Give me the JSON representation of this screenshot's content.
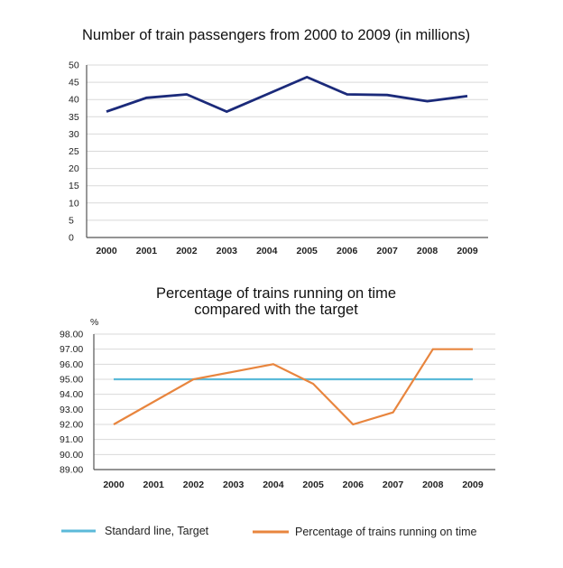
{
  "chart_data": [
    {
      "type": "line",
      "title": "Number of train passengers from 2000 to 2009 (in millions)",
      "xlabel": "",
      "ylabel": "",
      "categories": [
        "2000",
        "2001",
        "2002",
        "2003",
        "2004",
        "2005",
        "2006",
        "2007",
        "2008",
        "2009"
      ],
      "ylim": [
        0,
        50
      ],
      "yticks": [
        "0",
        "5",
        "10",
        "15",
        "20",
        "25",
        "30",
        "35",
        "40",
        "45",
        "50"
      ],
      "grid": true,
      "series": [
        {
          "name": "Train passengers (millions)",
          "color": "#1b2a7a",
          "values": [
            36.5,
            40.5,
            41.5,
            36.5,
            41.5,
            46.5,
            41.5,
            41.3,
            39.5,
            41
          ]
        }
      ]
    },
    {
      "type": "line",
      "title": [
        "Percentage of trains running on time",
        "compared with the target"
      ],
      "xlabel": "",
      "ylabel": "%",
      "categories": [
        "2000",
        "2001",
        "2002",
        "2003",
        "2004",
        "2005",
        "2006",
        "2007",
        "2008",
        "2009"
      ],
      "ylim": [
        89,
        98
      ],
      "yticks": [
        "89.00",
        "90.00",
        "91.00",
        "92.00",
        "93.00",
        "94.00",
        "95.00",
        "96.00",
        "97.00",
        "98.00"
      ],
      "grid": true,
      "series": [
        {
          "name": "Standard line, Target",
          "color": "#5bbad9",
          "values": [
            95,
            95,
            95,
            95,
            95,
            95,
            95,
            95,
            95,
            95
          ]
        },
        {
          "name": "Percentage of trains running on time",
          "color": "#e8853e",
          "values": [
            92,
            93.5,
            95,
            95.5,
            96,
            94.7,
            92,
            92.8,
            97,
            97
          ]
        }
      ],
      "legend": "bottom"
    }
  ]
}
